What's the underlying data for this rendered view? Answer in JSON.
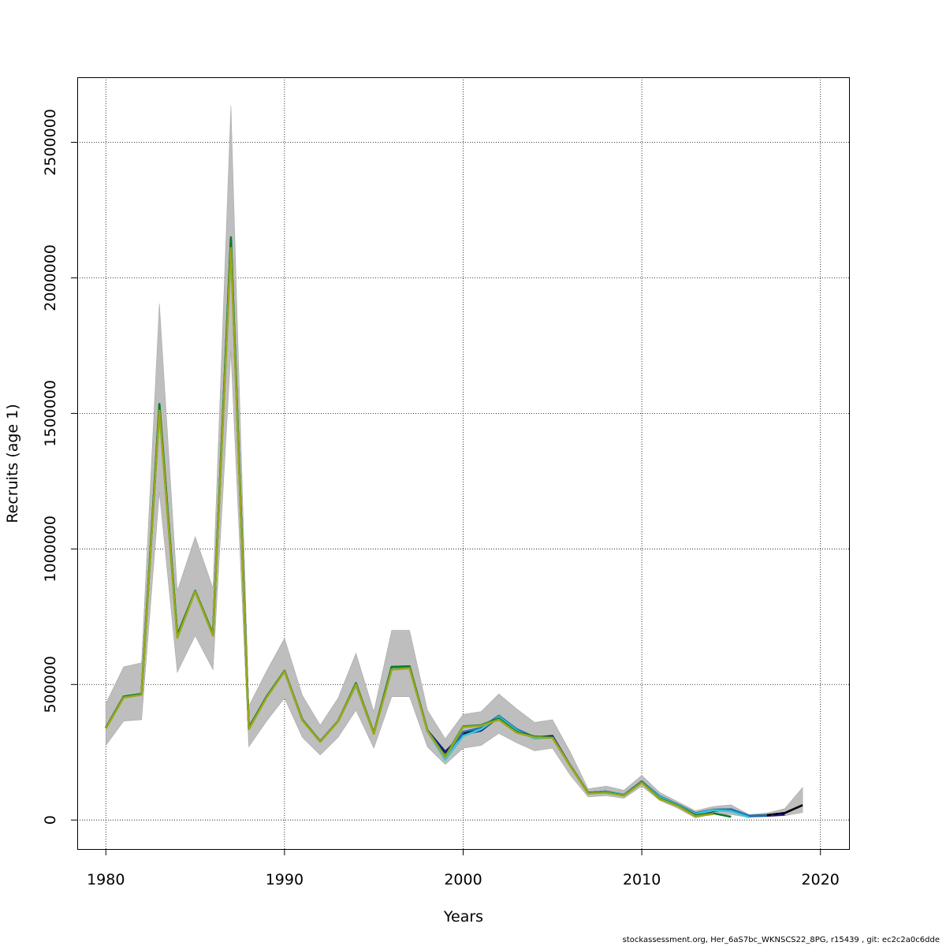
{
  "chart_data": {
    "type": "line",
    "xlabel": "Years",
    "ylabel": "Recruits (age 1)",
    "xlim": [
      1978.4,
      2021.6
    ],
    "ylim": [
      -107000,
      2740000
    ],
    "x_ticks": [
      1980,
      1990,
      2000,
      2010,
      2020
    ],
    "y_ticks": [
      0,
      500000,
      1000000,
      1500000,
      2000000,
      2500000
    ],
    "grid": true,
    "confidence_band": {
      "x": [
        1980,
        1981,
        1982,
        1983,
        1984,
        1985,
        1986,
        1987,
        1988,
        1989,
        1990,
        1991,
        1992,
        1993,
        1994,
        1995,
        1996,
        1997,
        1998,
        1999,
        2000,
        2001,
        2002,
        2003,
        2004,
        2005,
        2006,
        2007,
        2008,
        2009,
        2010,
        2011,
        2012,
        2013,
        2014,
        2015,
        2016,
        2017,
        2018,
        2019
      ],
      "lower": [
        275000,
        365000,
        370000,
        1210000,
        545000,
        680000,
        555000,
        1730000,
        270000,
        365000,
        450000,
        305000,
        240000,
        305000,
        405000,
        265000,
        455000,
        455000,
        270000,
        205000,
        265000,
        275000,
        320000,
        285000,
        255000,
        265000,
        165000,
        85000,
        90000,
        80000,
        125000,
        72000,
        44000,
        8000,
        22000,
        20000,
        10000,
        12000,
        16000,
        28000
      ],
      "upper": [
        430000,
        565000,
        580000,
        1905000,
        845000,
        1045000,
        855000,
        2635000,
        420000,
        550000,
        670000,
        460000,
        350000,
        450000,
        615000,
        400000,
        700000,
        700000,
        405000,
        300000,
        390000,
        400000,
        465000,
        410000,
        360000,
        370000,
        250000,
        115000,
        125000,
        110000,
        165000,
        102000,
        68000,
        34000,
        50000,
        56000,
        20000,
        26000,
        42000,
        120000
      ]
    },
    "series": [
      {
        "color": "#000000",
        "x": [
          1980,
          1981,
          1982,
          1983,
          1984,
          1985,
          1986,
          1987,
          1988,
          1989,
          1990,
          1991,
          1992,
          1993,
          1994,
          1995,
          1996,
          1997,
          1998,
          1999,
          2000,
          2001,
          2002,
          2003,
          2004,
          2005,
          2006,
          2007,
          2008,
          2009,
          2010,
          2011,
          2012,
          2013,
          2014,
          2015,
          2016,
          2017,
          2018,
          2019
        ],
        "values": [
          340000,
          455000,
          465000,
          1520000,
          680000,
          845000,
          685000,
          2130000,
          340000,
          455000,
          550000,
          370000,
          290000,
          365000,
          500000,
          320000,
          565000,
          565000,
          330000,
          250000,
          320000,
          330000,
          380000,
          330000,
          305000,
          305000,
          200000,
          100000,
          105000,
          93000,
          142000,
          85000,
          56000,
          22000,
          34000,
          36000,
          15000,
          18000,
          26000,
          55000
        ]
      },
      {
        "color": "#1a1a8c",
        "x": [
          1980,
          1981,
          1982,
          1983,
          1984,
          1985,
          1986,
          1987,
          1988,
          1989,
          1990,
          1991,
          1992,
          1993,
          1994,
          1995,
          1996,
          1997,
          1998,
          1999,
          2000,
          2001,
          2002,
          2003,
          2004,
          2005,
          2006,
          2007,
          2008,
          2009,
          2010,
          2011,
          2012,
          2013,
          2014,
          2015,
          2016,
          2017,
          2018
        ],
        "values": [
          340000,
          455000,
          465000,
          1525000,
          680000,
          845000,
          685000,
          2135000,
          340000,
          455000,
          550000,
          370000,
          290000,
          365000,
          500000,
          320000,
          565000,
          565000,
          330000,
          252000,
          315000,
          330000,
          382000,
          335000,
          305000,
          310000,
          200000,
          100000,
          105000,
          93000,
          142000,
          85000,
          56000,
          22000,
          34000,
          36000,
          15000,
          16000,
          20000
        ]
      },
      {
        "color": "#1f78b4",
        "x": [
          1980,
          1981,
          1982,
          1983,
          1984,
          1985,
          1986,
          1987,
          1988,
          1989,
          1990,
          1991,
          1992,
          1993,
          1994,
          1995,
          1996,
          1997,
          1998,
          1999,
          2000,
          2001,
          2002,
          2003,
          2004,
          2005,
          2006,
          2007,
          2008,
          2009,
          2010,
          2011,
          2012,
          2013,
          2014,
          2015,
          2016,
          2017
        ],
        "values": [
          340000,
          455000,
          465000,
          1530000,
          682000,
          845000,
          685000,
          2140000,
          340000,
          455000,
          550000,
          370000,
          290000,
          365000,
          500000,
          320000,
          565000,
          565000,
          330000,
          235000,
          325000,
          340000,
          385000,
          335000,
          305000,
          305000,
          200000,
          100000,
          105000,
          93000,
          142000,
          88000,
          58000,
          25000,
          38000,
          40000,
          16000,
          17000
        ]
      },
      {
        "color": "#3ec6d8",
        "x": [
          1980,
          1981,
          1982,
          1983,
          1984,
          1985,
          1986,
          1987,
          1988,
          1989,
          1990,
          1991,
          1992,
          1993,
          1994,
          1995,
          1996,
          1997,
          1998,
          1999,
          2000,
          2001,
          2002,
          2003,
          2004,
          2005,
          2006,
          2007,
          2008,
          2009,
          2010,
          2011,
          2012,
          2013,
          2014,
          2015,
          2016
        ],
        "values": [
          340000,
          455000,
          465000,
          1530000,
          682000,
          845000,
          685000,
          2140000,
          340000,
          455000,
          550000,
          370000,
          290000,
          365000,
          500000,
          320000,
          565000,
          565000,
          328000,
          222000,
          310000,
          335000,
          380000,
          330000,
          300000,
          305000,
          200000,
          100000,
          105000,
          93000,
          140000,
          85000,
          56000,
          22000,
          36000,
          32000,
          10000
        ]
      },
      {
        "color": "#0b7a2a",
        "x": [
          1980,
          1981,
          1982,
          1983,
          1984,
          1985,
          1986,
          1987,
          1988,
          1989,
          1990,
          1991,
          1992,
          1993,
          1994,
          1995,
          1996,
          1997,
          1998,
          1999,
          2000,
          2001,
          2002,
          2003,
          2004,
          2005,
          2006,
          2007,
          2008,
          2009,
          2010,
          2011,
          2012,
          2013,
          2014,
          2015
        ],
        "values": [
          340000,
          455000,
          465000,
          1535000,
          682000,
          845000,
          685000,
          2150000,
          340000,
          455000,
          550000,
          370000,
          290000,
          365000,
          505000,
          320000,
          565000,
          567000,
          330000,
          235000,
          345000,
          350000,
          375000,
          325000,
          308000,
          305000,
          200000,
          100000,
          103000,
          91000,
          140000,
          80000,
          54000,
          18000,
          25000,
          12000
        ]
      },
      {
        "color": "#9aa71a",
        "x": [
          1980,
          1981,
          1982,
          1983,
          1984,
          1985,
          1986,
          1987,
          1988,
          1989,
          1990,
          1991,
          1992,
          1993,
          1994,
          1995,
          1996,
          1997,
          1998,
          1999,
          2000,
          2001,
          2002,
          2003,
          2004,
          2005,
          2006,
          2007,
          2008,
          2009,
          2010,
          2011,
          2012,
          2013,
          2014
        ],
        "values": [
          338000,
          452000,
          462000,
          1510000,
          672000,
          843000,
          680000,
          2110000,
          335000,
          452000,
          548000,
          368000,
          289000,
          364000,
          500000,
          318000,
          555000,
          560000,
          328000,
          232000,
          343000,
          348000,
          370000,
          322000,
          305000,
          303000,
          198000,
          98000,
          101000,
          90000,
          138000,
          78000,
          52000,
          14000,
          22000
        ]
      }
    ]
  },
  "footer": "stockassessment.org, Her_6aS7bc_WKNSCS22_8PG, r15439 , git: ec2c2a0c6dde"
}
